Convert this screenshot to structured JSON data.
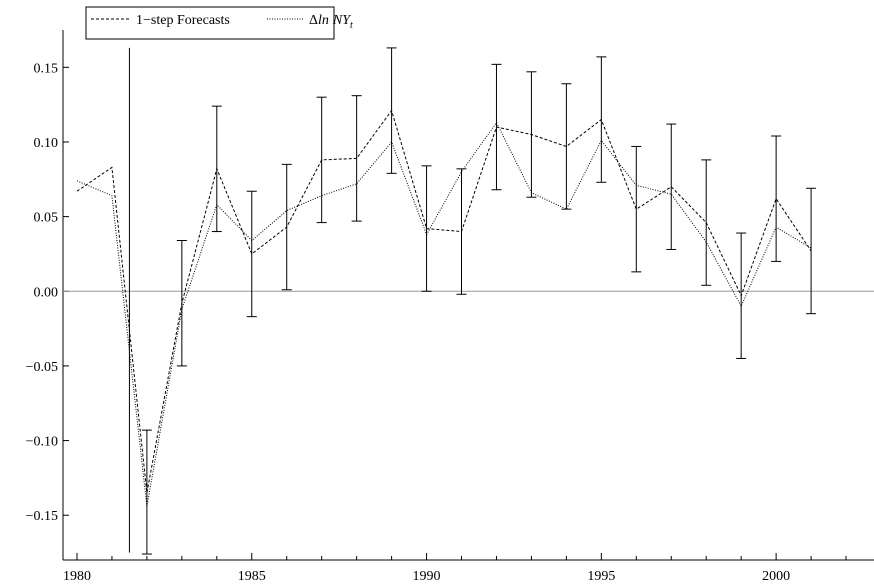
{
  "chart_data": {
    "type": "line",
    "title": "",
    "xlabel": "",
    "ylabel": "",
    "xlim": [
      1979.6,
      2002.8
    ],
    "ylim": [
      -0.18,
      0.175
    ],
    "x_ticks": [
      1980,
      1985,
      1990,
      1995,
      2000
    ],
    "x_tick_labels": [
      "1980",
      "1985",
      "1990",
      "1995",
      "2000"
    ],
    "y_ticks": [
      0.15,
      0.1,
      0.05,
      0.0,
      -0.05,
      -0.1,
      -0.15
    ],
    "y_tick_labels": [
      "0.15",
      "0.10",
      "0.05",
      "0.00",
      "−0.05",
      "−0.10",
      "−0.15"
    ],
    "zero_line": true,
    "grid": false,
    "legend_position": "top-left",
    "series": [
      {
        "name": "1−step Forecasts",
        "style": "dashed",
        "x": [
          1980,
          1981,
          1982,
          1983,
          1984,
          1985,
          1986,
          1987,
          1988,
          1989,
          1990,
          1991,
          1992,
          1993,
          1994,
          1995,
          1996,
          1997,
          1998,
          1999,
          2000,
          2001
        ],
        "values": [
          0.067,
          0.083,
          -0.135,
          -0.008,
          0.082,
          0.025,
          0.043,
          0.088,
          0.089,
          0.121,
          0.042,
          0.04,
          0.11,
          0.105,
          0.097,
          0.115,
          0.055,
          0.07,
          0.046,
          -0.003,
          0.062,
          0.027
        ],
        "error_bars": {
          "lower": [
            null,
            -0.175,
            -0.176,
            -0.05,
            0.04,
            -0.017,
            0.001,
            0.046,
            0.047,
            0.079,
            0.0,
            -0.002,
            0.068,
            0.063,
            0.055,
            0.073,
            0.013,
            0.028,
            0.004,
            -0.045,
            0.02,
            -0.015
          ],
          "upper": [
            null,
            0.163,
            -0.093,
            0.034,
            0.124,
            0.067,
            0.085,
            0.13,
            0.131,
            0.163,
            0.084,
            0.082,
            0.152,
            0.147,
            0.139,
            0.157,
            0.097,
            0.112,
            0.088,
            0.039,
            0.104,
            0.069
          ]
        }
      },
      {
        "name": "Δln NY_t",
        "style": "dotted",
        "x": [
          1980,
          1981,
          1982,
          1983,
          1984,
          1985,
          1986,
          1987,
          1988,
          1989,
          1990,
          1991,
          1992,
          1993,
          1994,
          1995,
          1996,
          1997,
          1998,
          1999,
          2000,
          2001
        ],
        "values": [
          0.074,
          0.064,
          -0.144,
          -0.012,
          0.058,
          0.034,
          0.054,
          0.064,
          0.072,
          0.1,
          0.038,
          0.08,
          0.113,
          0.066,
          0.055,
          0.101,
          0.071,
          0.065,
          0.033,
          -0.01,
          0.043,
          0.029
        ]
      }
    ]
  },
  "legend": {
    "item1_label": "1−step Forecasts",
    "item2_delta": "Δ",
    "item2_ln": "ln",
    "item2_ny": "NY",
    "item2_sub": "t"
  }
}
